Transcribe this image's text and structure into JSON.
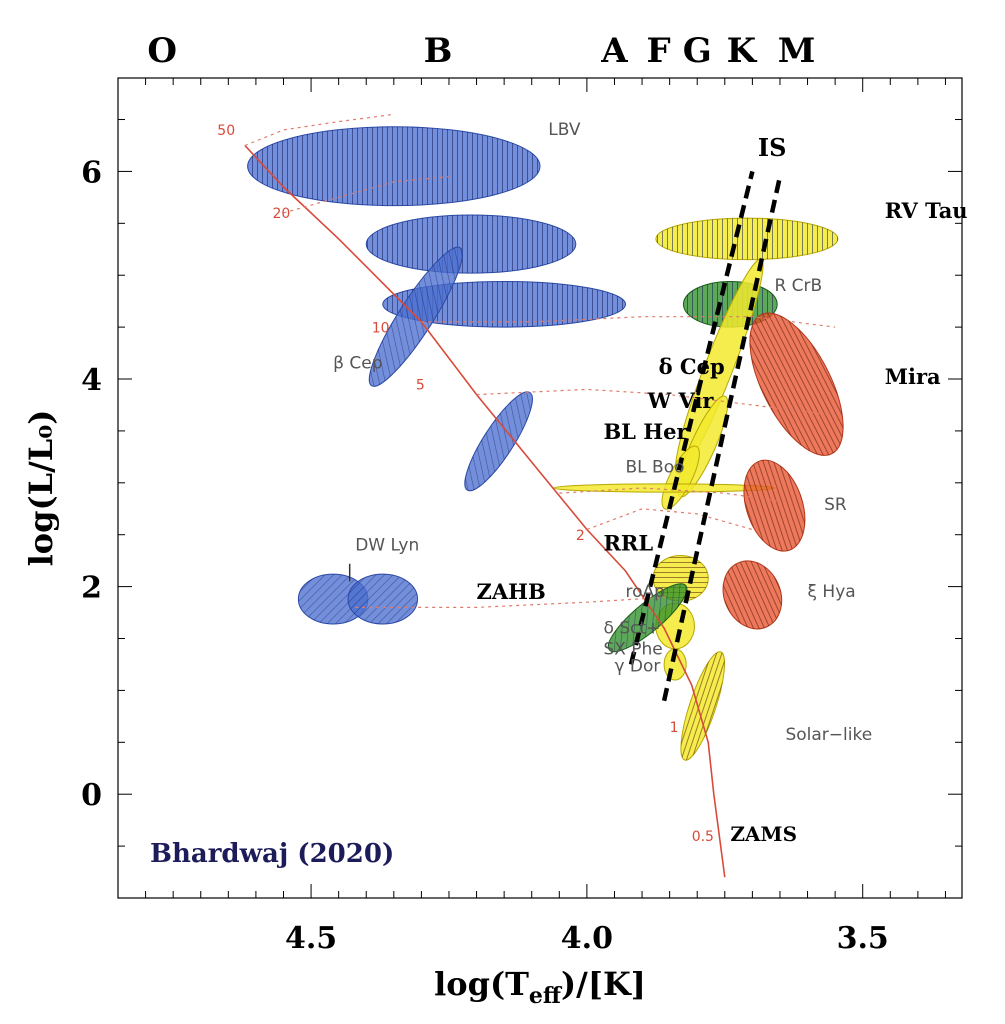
{
  "chart_data": {
    "type": "scatter",
    "title": "",
    "xlabel": "log(T_eff)/[K]",
    "ylabel": "log(L/L₀)",
    "x_axis": {
      "range": [
        4.85,
        3.32
      ],
      "reversed": true,
      "ticks": [
        4.5,
        4.0,
        3.5
      ],
      "tick_labels": [
        "4.5",
        "4.0",
        "3.5"
      ]
    },
    "y_axis": {
      "range": [
        -1.0,
        6.9
      ],
      "ticks": [
        0,
        2,
        4,
        6
      ],
      "tick_labels": [
        "0",
        "2",
        "4",
        "6"
      ]
    },
    "spectral_classes": [
      {
        "label": "O",
        "x": 4.77
      },
      {
        "label": "B",
        "x": 4.27
      },
      {
        "label": "A",
        "x": 3.95
      },
      {
        "label": "F",
        "x": 3.87
      },
      {
        "label": "G",
        "x": 3.8
      },
      {
        "label": "K",
        "x": 3.72
      },
      {
        "label": "M",
        "x": 3.62
      }
    ],
    "credit": "Bhardwaj (2020)",
    "zams": {
      "label": "ZAMS",
      "points": [
        [
          4.62,
          6.25
        ],
        [
          4.55,
          5.85
        ],
        [
          4.45,
          5.35
        ],
        [
          4.3,
          4.55
        ],
        [
          4.2,
          3.85
        ],
        [
          4.1,
          3.2
        ],
        [
          4.0,
          2.55
        ],
        [
          3.93,
          2.15
        ],
        [
          3.86,
          1.6
        ],
        [
          3.81,
          1.05
        ],
        [
          3.78,
          0.5
        ],
        [
          3.77,
          0.0
        ],
        [
          3.75,
          -0.8
        ]
      ],
      "mass_labels": [
        {
          "text": "50",
          "x": 4.67,
          "y": 6.35
        },
        {
          "text": "20",
          "x": 4.57,
          "y": 5.55
        },
        {
          "text": "10",
          "x": 4.39,
          "y": 4.45
        },
        {
          "text": "5",
          "x": 4.31,
          "y": 3.9
        },
        {
          "text": "2",
          "x": 4.02,
          "y": 2.45
        },
        {
          "text": "1",
          "x": 3.85,
          "y": 0.6
        },
        {
          "text": "0.5",
          "x": 3.81,
          "y": -0.45
        }
      ]
    },
    "instability_strip": {
      "label": "IS",
      "blue_edge": [
        [
          3.92,
          1.25
        ],
        [
          3.7,
          6.0
        ]
      ],
      "red_edge": [
        [
          3.86,
          0.9
        ],
        [
          3.65,
          5.95
        ]
      ]
    },
    "regions": [
      {
        "name": "LBV",
        "label": "LBV",
        "color": "#4b6fd1",
        "hatch": "vertical",
        "cx": 4.35,
        "cy": 6.05,
        "rx": 0.265,
        "ry": 0.38,
        "angle": 0,
        "label_x": 4.07,
        "label_y": 6.35
      },
      {
        "name": "upper-blue-band",
        "label": "",
        "color": "#4b6fd1",
        "hatch": "vertical",
        "cx": 4.21,
        "cy": 5.3,
        "rx": 0.19,
        "ry": 0.28,
        "angle": 0
      },
      {
        "name": "lower-blue-band",
        "label": "",
        "color": "#4b6fd1",
        "hatch": "vertical",
        "cx": 4.15,
        "cy": 4.72,
        "rx": 0.22,
        "ry": 0.22,
        "angle": 0
      },
      {
        "name": "beta-Cep-upper",
        "label": "β Cep",
        "color": "#4b6fd1",
        "hatch": "diagonal",
        "cx": 4.31,
        "cy": 4.6,
        "rx": 0.82,
        "ry": 0.085,
        "angle": -1.0,
        "label_x": 4.46,
        "label_y": 4.1
      },
      {
        "name": "beta-Cep-lower",
        "label": "",
        "color": "#4b6fd1",
        "hatch": "diagonal",
        "cx": 4.16,
        "cy": 3.4,
        "rx": 0.58,
        "ry": 0.075,
        "angle": -1.0
      },
      {
        "name": "ZAHB-left",
        "label": "DW Lyn",
        "color": "#4b6fd1",
        "hatch": "diagonal",
        "cx": 4.46,
        "cy": 1.88,
        "rx": 0.063,
        "ry": 0.24,
        "angle": 0,
        "label_x": 4.42,
        "label_y": 2.35
      },
      {
        "name": "ZAHB-right",
        "label": "ZAHB",
        "color": "#4b6fd1",
        "hatch": "diagonal",
        "cx": 4.37,
        "cy": 1.88,
        "rx": 0.063,
        "ry": 0.24,
        "angle": 0,
        "label_x": 4.2,
        "label_y": 1.88
      },
      {
        "name": "RV-Tau",
        "label": "RV Tau",
        "color": "#f2ea2e",
        "hatch": "vertical",
        "cx": 3.71,
        "cy": 5.35,
        "rx": 0.165,
        "ry": 0.2,
        "angle": 0,
        "label_x": 3.46,
        "label_y": 5.55
      },
      {
        "name": "R-CrB",
        "label": "R CrB",
        "color": "#2f8f2a",
        "hatch": "vertical",
        "cx": 3.74,
        "cy": 4.72,
        "rx": 0.085,
        "ry": 0.22,
        "angle": 0,
        "label_x": 3.66,
        "label_y": 4.85
      },
      {
        "name": "delta-Cep",
        "label": "δ Cep",
        "color": "#f2ea2e",
        "hatch": "none",
        "cx": 3.76,
        "cy": 4.12,
        "rx": 1.15,
        "ry": 0.07,
        "angle": -1.2,
        "label_x": 3.87,
        "label_y": 4.05
      },
      {
        "name": "W-Vir",
        "label": "W Vir",
        "color": "#f2ea2e",
        "hatch": "none",
        "cx": 3.79,
        "cy": 3.35,
        "rx": 0.55,
        "ry": 0.06,
        "angle": -1.15,
        "label_x": 3.89,
        "label_y": 3.72
      },
      {
        "name": "BL-Her",
        "label": "BL Her",
        "color": "#f2ea2e",
        "hatch": "none",
        "cx": 3.83,
        "cy": 3.05,
        "rx": 0.35,
        "ry": 0.055,
        "angle": -1.1,
        "label_x": 3.97,
        "label_y": 3.42
      },
      {
        "name": "BL-Boo",
        "label": "BL Boo",
        "color": "#f2ea2e",
        "hatch": "none",
        "cx": 3.86,
        "cy": 2.95,
        "rx": 0.2,
        "ry": 0.04,
        "angle": 0,
        "label_x": 3.93,
        "label_y": 3.1
      },
      {
        "name": "RRL",
        "label": "RRL",
        "color": "#f2ea2e",
        "hatch": "horizontal",
        "cx": 3.83,
        "cy": 2.08,
        "rx": 0.05,
        "ry": 0.22,
        "angle": 0,
        "label_x": 3.97,
        "label_y": 2.35
      },
      {
        "name": "roAp",
        "label": "roAp",
        "color": "#f2ea2e",
        "hatch": "none",
        "cx": 3.84,
        "cy": 1.62,
        "rx": 0.035,
        "ry": 0.22,
        "angle": 0,
        "label_x": 3.93,
        "label_y": 1.9
      },
      {
        "name": "delta-Sct",
        "label": "δ Sct+\nSX Phe",
        "color": "#2f8f2a",
        "hatch": "diagonal",
        "cx": 3.89,
        "cy": 1.7,
        "rx": 0.5,
        "ry": 0.07,
        "angle": -0.7,
        "label_x": 3.97,
        "label_y": 1.55
      },
      {
        "name": "gamma-Dor",
        "label": "γ Dor",
        "color": "#f2ea2e",
        "hatch": "none",
        "cx": 3.84,
        "cy": 1.25,
        "rx": 0.02,
        "ry": 0.15,
        "angle": 0,
        "label_x": 3.95,
        "label_y": 1.18
      },
      {
        "name": "Solar-like",
        "label": "Solar−like",
        "color": "#f2ea2e",
        "hatch": "horizontal",
        "cx": 3.79,
        "cy": 0.85,
        "rx": 0.57,
        "ry": 0.065,
        "angle": -1.25,
        "label_x": 3.64,
        "label_y": 0.52
      },
      {
        "name": "Mira",
        "label": "Mira",
        "color": "#e8522e",
        "hatch": "horizontal",
        "cx": 3.62,
        "cy": 3.95,
        "rx": 0.78,
        "ry": 0.17,
        "angle": 1.1,
        "label_x": 3.46,
        "label_y": 3.95
      },
      {
        "name": "SR",
        "label": "SR",
        "color": "#e8522e",
        "hatch": "horizontal",
        "cx": 3.66,
        "cy": 2.78,
        "rx": 0.47,
        "ry": 0.14,
        "angle": 1.25,
        "label_x": 3.57,
        "label_y": 2.74
      },
      {
        "name": "xi-Hya",
        "label": "ξ Hya",
        "color": "#e8522e",
        "hatch": "horizontal",
        "cx": 3.7,
        "cy": 1.92,
        "rx": 0.35,
        "ry": 0.14,
        "angle": 1.15,
        "label_x": 3.6,
        "label_y": 1.9
      }
    ],
    "bold_labels": [
      "RV Tau",
      "δ Cep",
      "W Vir",
      "BL Her",
      "RRL",
      "ZAHB",
      "Mira",
      "ZAMS",
      "IS"
    ],
    "grid": false,
    "legend": "none"
  }
}
